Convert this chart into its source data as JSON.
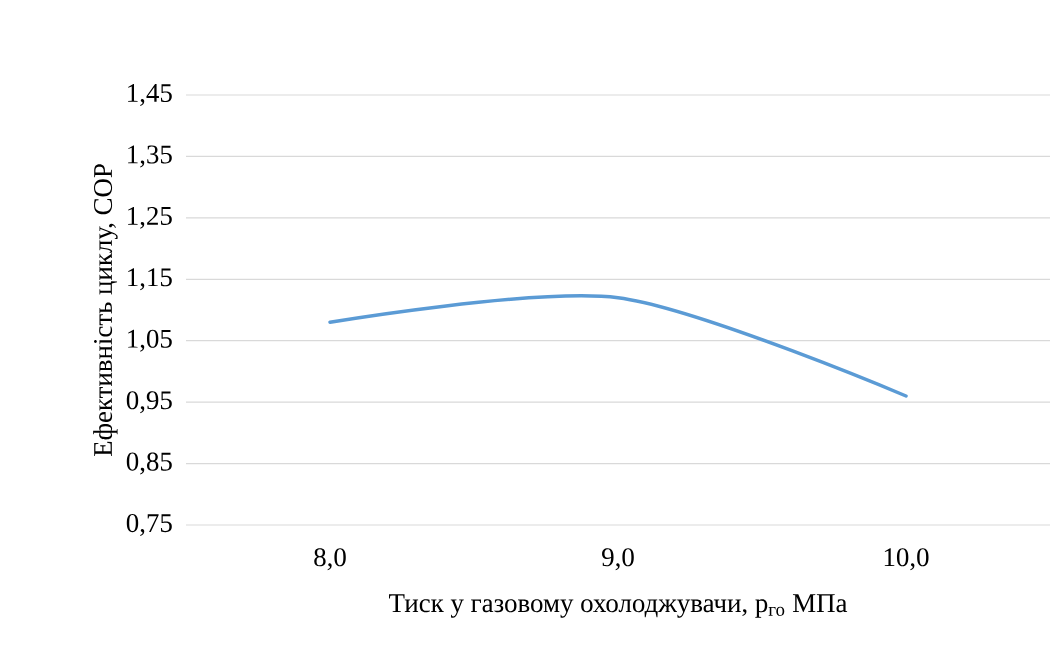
{
  "chart_data": {
    "type": "line",
    "xlabel": "Тиск у газовому охолоджувачи, p$_{го}$ МПа",
    "ylabel": "Ефективність циклу, COP",
    "categories": [
      "8,0",
      "9,0",
      "10,0"
    ],
    "series": [
      {
        "color": "#5b9bd5",
        "values": [
          1.08,
          1.12,
          0.96
        ]
      }
    ],
    "ylim": [
      0.75,
      1.45
    ],
    "yticks": [
      {
        "value": 0.75,
        "label": "0,75"
      },
      {
        "value": 0.85,
        "label": "0,85"
      },
      {
        "value": 0.95,
        "label": "0,95"
      },
      {
        "value": 1.05,
        "label": "1,05"
      },
      {
        "value": 1.15,
        "label": "1,15"
      },
      {
        "value": 1.25,
        "label": "1,25"
      },
      {
        "value": 1.35,
        "label": "1,35"
      },
      {
        "value": 1.45,
        "label": "1,45"
      }
    ],
    "grid": "y",
    "marker": "none",
    "line_style": "solid"
  }
}
